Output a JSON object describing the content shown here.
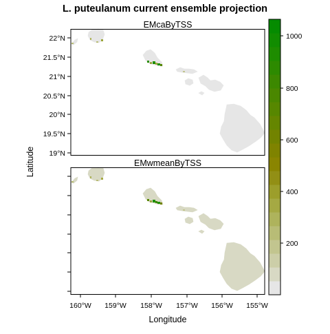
{
  "title": "L. puteulanum current ensemble projection",
  "panels": [
    {
      "name": "EMcaByTSS"
    },
    {
      "name": "EMwmeanByTSS"
    }
  ],
  "axes": {
    "xlabel": "Longitude",
    "ylabel": "Latitude",
    "x_ticks": [
      "160°W",
      "159°W",
      "158°W",
      "157°W",
      "156°W",
      "155°W"
    ],
    "y_ticks": [
      "22°N",
      "21.5°N",
      "21°N",
      "20.5°N",
      "20°N",
      "19.5°N",
      "19°N"
    ]
  },
  "colorbar": {
    "ticks": [
      "1000",
      "800",
      "600",
      "400",
      "200"
    ],
    "colors": [
      "#e6e6e6",
      "#d8d9c4",
      "#cccea8",
      "#c2c58f",
      "#b8bc76",
      "#aeb35c",
      "#a5a943",
      "#9c9e2b",
      "#928f15",
      "#8a8501",
      "#7f8300",
      "#728300",
      "#658600",
      "#578700",
      "#4a8700",
      "#3c8800",
      "#2d8a00",
      "#1e8c00",
      "#118c00",
      "#058b00"
    ]
  },
  "colors": {
    "land_ca": "#e6e6e6",
    "land_wmean": "#d8d9c4",
    "suitable": "#1f8f00",
    "suitable_light": "#a0a83a",
    "frame": "#000000"
  }
}
